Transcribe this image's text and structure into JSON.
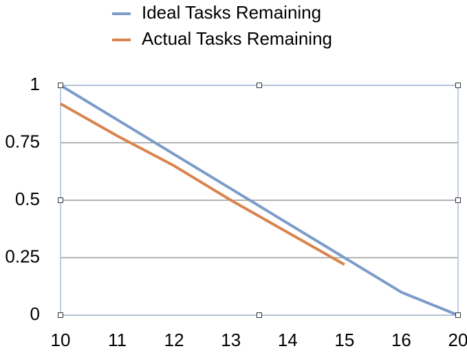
{
  "chart_data": {
    "type": "line",
    "categories": [
      "10",
      "11",
      "12",
      "13",
      "14",
      "15",
      "16",
      "20"
    ],
    "series": [
      {
        "name": "Ideal Tasks Remaining",
        "color": "#7b9cc9",
        "values": [
          1,
          0.85,
          0.7,
          0.55,
          0.4,
          0.25,
          0.1,
          0
        ]
      },
      {
        "name": "Actual Tasks Remaining",
        "color": "#d9844e",
        "values": [
          0.92,
          0.78,
          0.65,
          0.5,
          0.36,
          0.22,
          null,
          null
        ]
      }
    ],
    "ylim": [
      0,
      1
    ],
    "yticks": [
      0,
      0.25,
      0.5,
      0.75,
      1
    ],
    "grid": true,
    "legend": "top"
  }
}
